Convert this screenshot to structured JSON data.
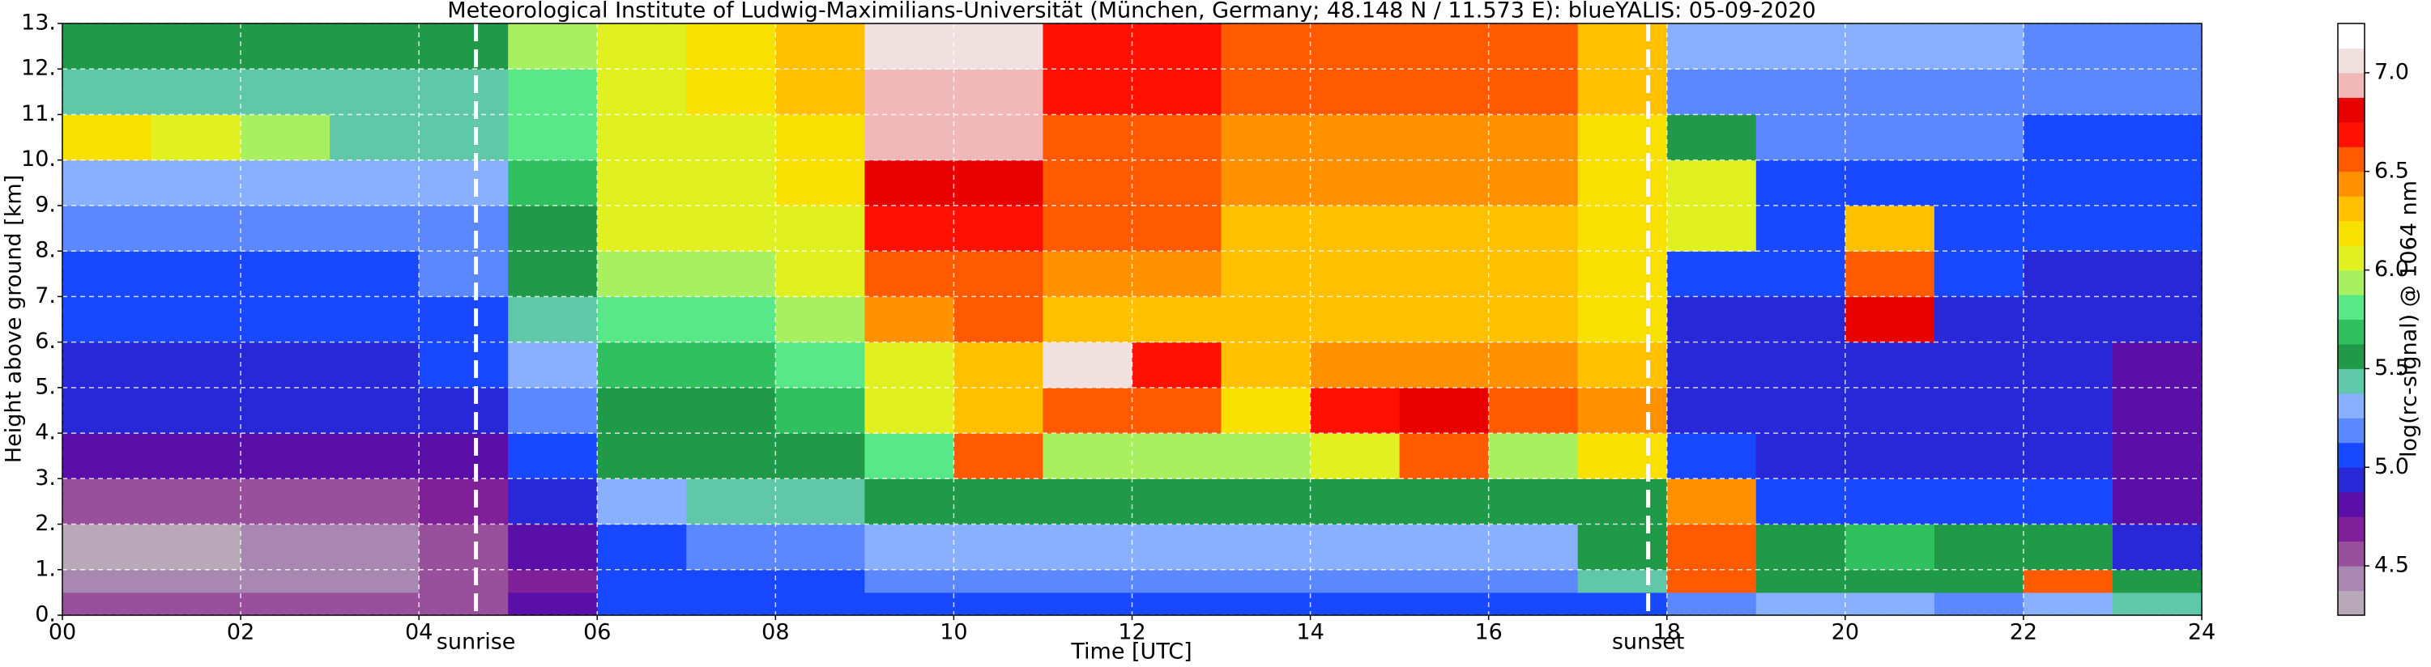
{
  "chart_data": {
    "type": "heatmap",
    "title": "Meteorological Institute of Ludwig-Maximilians-Universität (München, Germany; 48.148 N / 11.573 E):    blueYALIS: 05-09-2020",
    "x_label": "Time [UTC]",
    "y_label": "Height above ground [km]",
    "xlim": [
      0,
      24
    ],
    "ylim": [
      0,
      13
    ],
    "xticks": [
      {
        "value": 0,
        "label": "00"
      },
      {
        "value": 2,
        "label": "02"
      },
      {
        "value": 4,
        "label": "04"
      },
      {
        "value": 6,
        "label": "06"
      },
      {
        "value": 8,
        "label": "08"
      },
      {
        "value": 10,
        "label": "10"
      },
      {
        "value": 12,
        "label": "12"
      },
      {
        "value": 14,
        "label": "14"
      },
      {
        "value": 16,
        "label": "16"
      },
      {
        "value": 18,
        "label": "18"
      },
      {
        "value": 20,
        "label": "20"
      },
      {
        "value": 22,
        "label": "22"
      },
      {
        "value": 24,
        "label": "24"
      }
    ],
    "yticks": [
      {
        "value": 0,
        "label": "0."
      },
      {
        "value": 1,
        "label": "1."
      },
      {
        "value": 2,
        "label": "2."
      },
      {
        "value": 3,
        "label": "3."
      },
      {
        "value": 4,
        "label": "4."
      },
      {
        "value": 5,
        "label": "5."
      },
      {
        "value": 6,
        "label": "6."
      },
      {
        "value": 7,
        "label": "7."
      },
      {
        "value": 8,
        "label": "8."
      },
      {
        "value": 9,
        "label": "9."
      },
      {
        "value": 10,
        "label": "10."
      },
      {
        "value": 11,
        "label": "11."
      },
      {
        "value": 12,
        "label": "12."
      },
      {
        "value": 13,
        "label": "13."
      }
    ],
    "grid": true,
    "x_edges": [
      0,
      1,
      2,
      3,
      4,
      5,
      6,
      7,
      8,
      9,
      10,
      11,
      12,
      13,
      14,
      15,
      16,
      17,
      18,
      19,
      20,
      21,
      22,
      23,
      24
    ],
    "y_edges": [
      0,
      0.5,
      1,
      2,
      3,
      4,
      5,
      6,
      7,
      8,
      9,
      10,
      11,
      12,
      13
    ],
    "z": [
      [
        4.6,
        4.6,
        4.6,
        4.6,
        4.6,
        4.8,
        5.0,
        5.1,
        5.1,
        5.1,
        5.1,
        5.1,
        5.1,
        5.1,
        5.1,
        5.1,
        5.1,
        5.1,
        5.2,
        5.3,
        5.3,
        5.2,
        5.3,
        5.4
      ],
      [
        4.4,
        4.4,
        4.4,
        4.4,
        4.5,
        4.7,
        5.0,
        5.1,
        5.1,
        5.2,
        5.2,
        5.2,
        5.2,
        5.2,
        5.2,
        5.2,
        5.2,
        5.4,
        6.6,
        5.5,
        5.6,
        5.6,
        6.6,
        5.6
      ],
      [
        4.35,
        4.35,
        4.4,
        4.4,
        4.5,
        4.8,
        5.1,
        5.2,
        5.2,
        5.3,
        5.3,
        5.3,
        5.3,
        5.3,
        5.3,
        5.3,
        5.3,
        5.5,
        6.6,
        5.6,
        5.7,
        5.6,
        5.6,
        4.9
      ],
      [
        4.55,
        4.55,
        4.55,
        4.6,
        4.7,
        4.9,
        5.3,
        5.4,
        5.4,
        5.5,
        5.6,
        5.6,
        5.6,
        5.6,
        5.5,
        5.5,
        5.5,
        5.5,
        6.4,
        5.1,
        5.1,
        5.0,
        5.0,
        4.8
      ],
      [
        4.8,
        4.8,
        4.8,
        4.8,
        4.85,
        5.1,
        5.5,
        5.5,
        5.6,
        5.8,
        6.5,
        5.9,
        5.9,
        5.9,
        6.0,
        6.5,
        5.9,
        6.2,
        5.0,
        4.95,
        4.95,
        4.9,
        4.9,
        4.8
      ],
      [
        4.9,
        4.9,
        4.9,
        4.9,
        4.95,
        5.2,
        5.6,
        5.6,
        5.7,
        6.0,
        6.3,
        6.6,
        6.6,
        6.2,
        6.7,
        6.8,
        6.6,
        6.4,
        4.9,
        4.9,
        4.9,
        4.9,
        4.9,
        4.8
      ],
      [
        4.95,
        4.95,
        4.95,
        4.95,
        5.0,
        5.3,
        5.7,
        5.7,
        5.8,
        6.1,
        6.3,
        7.0,
        6.7,
        6.3,
        6.4,
        6.4,
        6.4,
        6.3,
        4.9,
        4.9,
        4.9,
        4.9,
        4.9,
        4.8
      ],
      [
        5.0,
        5.0,
        5.0,
        5.0,
        5.05,
        5.4,
        5.8,
        5.8,
        5.9,
        6.4,
        6.5,
        6.3,
        6.3,
        6.3,
        6.3,
        6.3,
        6.3,
        6.2,
        4.95,
        4.95,
        6.8,
        4.95,
        4.9,
        4.9
      ],
      [
        5.1,
        5.1,
        5.1,
        5.1,
        5.15,
        5.5,
        5.9,
        5.9,
        6.0,
        6.6,
        6.6,
        6.4,
        6.4,
        6.3,
        6.3,
        6.3,
        6.3,
        6.2,
        5.0,
        5.0,
        6.5,
        5.0,
        4.95,
        4.95
      ],
      [
        5.2,
        5.2,
        5.2,
        5.2,
        5.2,
        5.6,
        6.0,
        6.0,
        6.1,
        6.7,
        6.7,
        6.5,
        6.5,
        6.3,
        6.3,
        6.3,
        6.3,
        6.2,
        6.0,
        5.05,
        6.3,
        5.05,
        5.0,
        5.0
      ],
      [
        5.3,
        5.3,
        5.3,
        5.3,
        5.3,
        5.7,
        6.0,
        6.1,
        6.2,
        6.8,
        6.8,
        6.6,
        6.6,
        6.4,
        6.4,
        6.4,
        6.4,
        6.2,
        6.0,
        5.1,
        5.1,
        5.1,
        5.05,
        5.05
      ],
      [
        6.2,
        6.1,
        5.9,
        5.4,
        5.4,
        5.8,
        6.1,
        6.1,
        6.2,
        6.9,
        6.9,
        6.6,
        6.6,
        6.4,
        6.4,
        6.4,
        6.4,
        6.2,
        5.6,
        5.15,
        5.15,
        5.15,
        5.1,
        5.1
      ],
      [
        5.45,
        5.45,
        5.45,
        5.45,
        5.45,
        5.8,
        6.1,
        6.2,
        6.3,
        6.9,
        6.9,
        6.7,
        6.7,
        6.5,
        6.5,
        6.5,
        6.5,
        6.3,
        5.2,
        5.2,
        5.2,
        5.2,
        5.15,
        5.15
      ],
      [
        5.5,
        5.5,
        5.5,
        5.5,
        5.5,
        5.9,
        6.1,
        6.2,
        6.3,
        7.0,
        7.0,
        6.7,
        6.7,
        6.5,
        6.5,
        6.5,
        6.5,
        6.3,
        5.25,
        5.25,
        5.25,
        5.25,
        5.2,
        5.2
      ]
    ],
    "annotations": [
      {
        "label": "sunrise",
        "x": 4.64
      },
      {
        "label": "sunset",
        "x": 17.79
      }
    ],
    "colorbar": {
      "label": "log(rc-signal) @ 1064 nm",
      "lim": [
        4.25,
        7.25
      ],
      "step": 0.125,
      "colors": [
        "#b8a8b8",
        "#a888b0",
        "#98509c",
        "#802098",
        "#5a10a8",
        "#2828d8",
        "#1848ff",
        "#5c88ff",
        "#88b0ff",
        "#60c8a8",
        "#209a48",
        "#30c060",
        "#58e888",
        "#a8f060",
        "#e0f020",
        "#f8e000",
        "#ffc000",
        "#ff9000",
        "#ff5a00",
        "#ff1000",
        "#e80000",
        "#f0b8b8",
        "#f0e0e0",
        "#ffffff"
      ],
      "ticks": [
        4.5,
        {
          "value": 5.0,
          "label": "5.0"
        },
        5.5,
        {
          "value": 6.0,
          "label": "6.0"
        },
        6.5,
        {
          "value": 7.0,
          "label": "7.0"
        }
      ]
    }
  }
}
